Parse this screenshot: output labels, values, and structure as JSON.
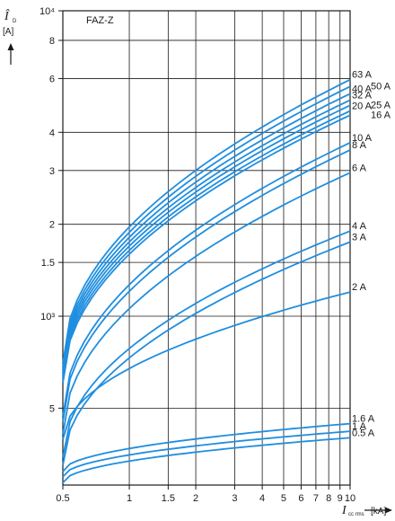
{
  "chart_data": {
    "type": "line",
    "panel_label": "FAZ-Z",
    "x_scale": "log",
    "y_scale": "log",
    "xlim": [
      0.5,
      10
    ],
    "ylim": [
      280,
      10000
    ],
    "x_ticks": [
      {
        "v": 0.5,
        "t": "0.5"
      },
      {
        "v": 1,
        "t": "1"
      },
      {
        "v": 1.5,
        "t": "1.5"
      },
      {
        "v": 2,
        "t": "2"
      },
      {
        "v": 3,
        "t": "3"
      },
      {
        "v": 4,
        "t": "4"
      },
      {
        "v": 5,
        "t": "5"
      },
      {
        "v": 6,
        "t": "6"
      },
      {
        "v": 7,
        "t": "7"
      },
      {
        "v": 8,
        "t": "8"
      },
      {
        "v": 9,
        "t": "9"
      },
      {
        "v": 10,
        "t": "10"
      }
    ],
    "y_ticks": [
      {
        "v": 10000,
        "t": "10⁴"
      },
      {
        "v": 8000,
        "t": "8"
      },
      {
        "v": 6000,
        "t": "6"
      },
      {
        "v": 4000,
        "t": "4"
      },
      {
        "v": 3000,
        "t": "3"
      },
      {
        "v": 2000,
        "t": "2"
      },
      {
        "v": 1500,
        "t": "1.5"
      },
      {
        "v": 1000,
        "t": "10³"
      },
      {
        "v": 500,
        "t": "5"
      }
    ],
    "y_axis": {
      "symbol": "Î",
      "subscript": "D",
      "unit": "[A]"
    },
    "x_axis": {
      "symbol": "I",
      "subscript": "cc rms",
      "unit": "[kA]"
    },
    "series_color": "#1f8ee0",
    "grid": true,
    "series": [
      {
        "name": "63 A",
        "x": [
          0.5,
          10
        ],
        "y": [
          700,
          5950
        ]
      },
      {
        "name": "50 A",
        "x": [
          0.5,
          10
        ],
        "y": [
          680,
          5650
        ]
      },
      {
        "name": "40 A",
        "x": [
          0.5,
          10
        ],
        "y": [
          665,
          5350
        ]
      },
      {
        "name": "32 A",
        "x": [
          0.5,
          10
        ],
        "y": [
          650,
          5100
        ]
      },
      {
        "name": "25 A",
        "x": [
          0.5,
          10
        ],
        "y": [
          635,
          4900
        ]
      },
      {
        "name": "20 A",
        "x": [
          0.5,
          10
        ],
        "y": [
          620,
          4700
        ]
      },
      {
        "name": "16 A",
        "x": [
          0.5,
          10
        ],
        "y": [
          605,
          4550
        ]
      },
      {
        "name": "10 A",
        "x": [
          0.5,
          10
        ],
        "y": [
          470,
          3700
        ]
      },
      {
        "name": "8 A",
        "x": [
          0.5,
          10
        ],
        "y": [
          450,
          3500
        ]
      },
      {
        "name": "6 A",
        "x": [
          0.5,
          10
        ],
        "y": [
          410,
          2950
        ]
      },
      {
        "name": "4 A",
        "x": [
          0.5,
          10
        ],
        "y": [
          345,
          1900
        ]
      },
      {
        "name": "3 A",
        "x": [
          0.5,
          10
        ],
        "y": [
          325,
          1750
        ]
      },
      {
        "name": "2 A",
        "x": [
          0.5,
          10
        ],
        "y": [
          395,
          1200
        ]
      },
      {
        "name": "1.6 A",
        "x": [
          0.5,
          10
        ],
        "y": [
          310,
          445
        ]
      },
      {
        "name": "1 A",
        "x": [
          0.5,
          10
        ],
        "y": [
          298,
          420
        ]
      },
      {
        "name": "0.5 A",
        "x": [
          0.5,
          10
        ],
        "y": [
          285,
          400
        ]
      }
    ]
  }
}
